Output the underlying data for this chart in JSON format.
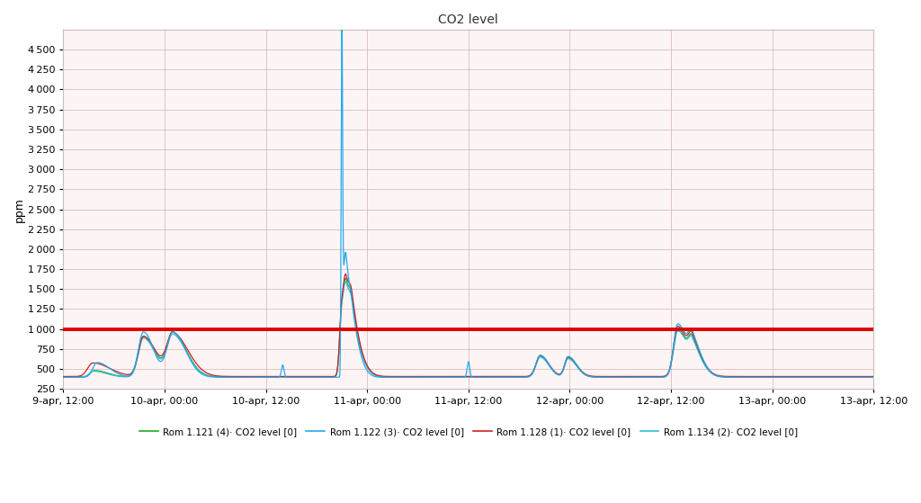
{
  "title": "CO2 level",
  "ylabel": "ppm",
  "ylim": [
    250,
    4750
  ],
  "yticks": [
    250,
    500,
    750,
    1000,
    1250,
    1500,
    1750,
    2000,
    2250,
    2500,
    2750,
    3000,
    3250,
    3500,
    3750,
    4000,
    4250,
    4500
  ],
  "background_color": "#ffffff",
  "plot_bg_color": "#fdf5f5",
  "grid_color": "#ddbcbc",
  "threshold": 1000,
  "threshold_color": "#dd0000",
  "legend": [
    {
      "label": "Rom 1.121 (4)· CO2 level [0]",
      "color": "#22aa22"
    },
    {
      "label": "Rom 1.122 (3)· CO2 level [0]",
      "color": "#22aaee"
    },
    {
      "label": "Rom 1.128 (1)· CO2 level [0]",
      "color": "#cc2222"
    },
    {
      "label": "Rom 1.134 (2)· CO2 level [0]",
      "color": "#22aaee"
    }
  ],
  "x_tick_labels": [
    "9-apr, 12:00",
    "10-apr, 00:00",
    "10-apr, 12:00",
    "11-apr, 00:00",
    "11-apr, 12:00",
    "12-apr, 00:00",
    "12-apr, 12:00",
    "13-apr, 00:00",
    "13-apr, 12:00"
  ]
}
